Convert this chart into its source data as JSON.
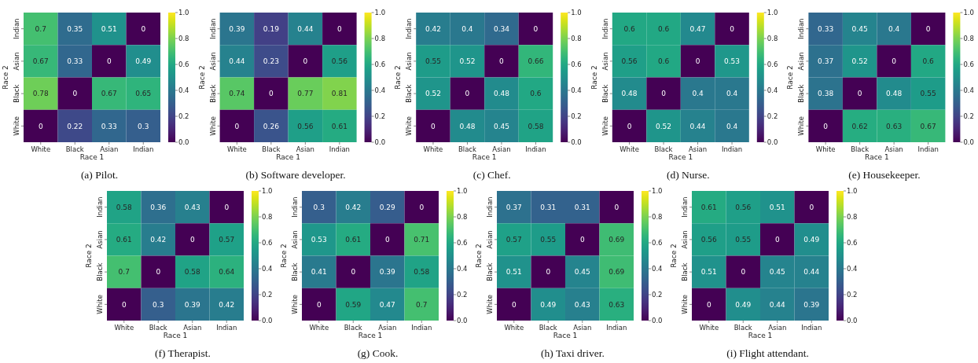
{
  "chart_data": [
    {
      "type": "heatmap",
      "data_labels": true,
      "title": "(a) Pilot.",
      "xlabel": "Race 1",
      "ylabel": "Race 2",
      "categories": [
        "White",
        "Black",
        "Asian",
        "Indian"
      ],
      "y_categories": [
        "Indian",
        "Asian",
        "Black",
        "White"
      ],
      "cells": [
        [
          0.7,
          0.35,
          0.51,
          0
        ],
        [
          0.67,
          0.33,
          0,
          0.49
        ],
        [
          0.78,
          0,
          0.67,
          0.65
        ],
        [
          0,
          0.22,
          0.33,
          0.3
        ]
      ],
      "clim": [
        0,
        1
      ],
      "cticks": [
        {
          "value": 0,
          "label": "0.0"
        },
        {
          "value": 0.2,
          "label": "0.2"
        },
        {
          "value": 0.4,
          "label": "0.4"
        },
        {
          "value": 0.6,
          "label": "0.6"
        },
        {
          "value": 0.8,
          "label": "0.8"
        },
        {
          "value": 1,
          "label": "1.0"
        }
      ]
    },
    {
      "type": "heatmap",
      "data_labels": true,
      "title": "(b) Software developer.",
      "xlabel": "Race 1",
      "ylabel": "Race 2",
      "categories": [
        "White",
        "Black",
        "Asian",
        "Indian"
      ],
      "y_categories": [
        "Indian",
        "Asian",
        "Black",
        "White"
      ],
      "cells": [
        [
          0.39,
          0.19,
          0.44,
          0
        ],
        [
          0.44,
          0.23,
          0,
          0.56
        ],
        [
          0.74,
          0,
          0.77,
          0.81
        ],
        [
          0,
          0.26,
          0.56,
          0.61
        ]
      ],
      "clim": [
        0,
        1
      ],
      "cticks": [
        {
          "value": 0,
          "label": "0.0"
        },
        {
          "value": 0.2,
          "label": "0.2"
        },
        {
          "value": 0.4,
          "label": "0.4"
        },
        {
          "value": 0.6,
          "label": "0.6"
        },
        {
          "value": 0.8,
          "label": "0.8"
        },
        {
          "value": 1,
          "label": "1.0"
        }
      ]
    },
    {
      "type": "heatmap",
      "data_labels": true,
      "title": "(c) Chef.",
      "xlabel": "Race 1",
      "ylabel": "Race 2",
      "categories": [
        "White",
        "Black",
        "Asian",
        "Indian"
      ],
      "y_categories": [
        "Indian",
        "Asian",
        "Black",
        "White"
      ],
      "cells": [
        [
          0.42,
          0.4,
          0.34,
          0
        ],
        [
          0.55,
          0.52,
          0,
          0.66
        ],
        [
          0.52,
          0,
          0.48,
          0.6
        ],
        [
          0,
          0.48,
          0.45,
          0.58
        ]
      ],
      "clim": [
        0,
        1
      ],
      "cticks": [
        {
          "value": 0,
          "label": "0.0"
        },
        {
          "value": 0.2,
          "label": "0.2"
        },
        {
          "value": 0.4,
          "label": "0.4"
        },
        {
          "value": 0.6,
          "label": "0.6"
        },
        {
          "value": 0.8,
          "label": "0.8"
        },
        {
          "value": 1,
          "label": "1.0"
        }
      ]
    },
    {
      "type": "heatmap",
      "data_labels": true,
      "title": "(d) Nurse.",
      "xlabel": "Race 1",
      "ylabel": "Race 2",
      "categories": [
        "White",
        "Black",
        "Asian",
        "Indian"
      ],
      "y_categories": [
        "Indian",
        "Asian",
        "Black",
        "White"
      ],
      "cells": [
        [
          0.6,
          0.6,
          0.47,
          0
        ],
        [
          0.56,
          0.6,
          0,
          0.53
        ],
        [
          0.48,
          0,
          0.4,
          0.4
        ],
        [
          0,
          0.52,
          0.44,
          0.4
        ]
      ],
      "clim": [
        0,
        1
      ],
      "cticks": [
        {
          "value": 0,
          "label": "0.0"
        },
        {
          "value": 0.2,
          "label": "0.2"
        },
        {
          "value": 0.4,
          "label": "0.4"
        },
        {
          "value": 0.6,
          "label": "0.6"
        },
        {
          "value": 0.8,
          "label": "0.8"
        },
        {
          "value": 1,
          "label": "1.0"
        }
      ]
    },
    {
      "type": "heatmap",
      "data_labels": true,
      "title": "(e) Housekeeper.",
      "xlabel": "Race 1",
      "ylabel": "Race 2",
      "categories": [
        "White",
        "Black",
        "Asian",
        "Indian"
      ],
      "y_categories": [
        "Indian",
        "Asian",
        "Black",
        "White"
      ],
      "cells": [
        [
          0.33,
          0.45,
          0.4,
          0
        ],
        [
          0.37,
          0.52,
          0,
          0.6
        ],
        [
          0.38,
          0,
          0.48,
          0.55
        ],
        [
          0,
          0.62,
          0.63,
          0.67
        ]
      ],
      "clim": [
        0,
        1
      ],
      "cticks": [
        {
          "value": 0,
          "label": "0.0"
        },
        {
          "value": 0.2,
          "label": "0.2"
        },
        {
          "value": 0.4,
          "label": "0.4"
        },
        {
          "value": 0.6,
          "label": "0.6"
        },
        {
          "value": 0.8,
          "label": "0.8"
        },
        {
          "value": 1,
          "label": "1.0"
        }
      ]
    },
    {
      "type": "heatmap",
      "data_labels": true,
      "title": "(f) Therapist.",
      "xlabel": "Race 1",
      "ylabel": "Race 2",
      "categories": [
        "White",
        "Black",
        "Asian",
        "Indian"
      ],
      "y_categories": [
        "Indian",
        "Asian",
        "Black",
        "White"
      ],
      "cells": [
        [
          0.58,
          0.36,
          0.43,
          0
        ],
        [
          0.61,
          0.42,
          0,
          0.57
        ],
        [
          0.7,
          0,
          0.58,
          0.64
        ],
        [
          0,
          0.3,
          0.39,
          0.42
        ]
      ],
      "clim": [
        0,
        1
      ],
      "cticks": [
        {
          "value": 0,
          "label": "0.0"
        },
        {
          "value": 0.2,
          "label": "0.2"
        },
        {
          "value": 0.4,
          "label": "0.4"
        },
        {
          "value": 0.6,
          "label": "0.6"
        },
        {
          "value": 0.8,
          "label": "0.8"
        },
        {
          "value": 1,
          "label": "1.0"
        }
      ]
    },
    {
      "type": "heatmap",
      "data_labels": true,
      "title": "(g) Cook.",
      "xlabel": "Race 1",
      "ylabel": "Race 2",
      "categories": [
        "White",
        "Black",
        "Asian",
        "Indian"
      ],
      "y_categories": [
        "Indian",
        "Asian",
        "Black",
        "White"
      ],
      "cells": [
        [
          0.3,
          0.42,
          0.29,
          0
        ],
        [
          0.53,
          0.61,
          0,
          0.71
        ],
        [
          0.41,
          0,
          0.39,
          0.58
        ],
        [
          0,
          0.59,
          0.47,
          0.7
        ]
      ],
      "clim": [
        0,
        1
      ],
      "cticks": [
        {
          "value": 0,
          "label": "0.0"
        },
        {
          "value": 0.2,
          "label": "0.2"
        },
        {
          "value": 0.4,
          "label": "0.4"
        },
        {
          "value": 0.6,
          "label": "0.6"
        },
        {
          "value": 0.8,
          "label": "0.8"
        },
        {
          "value": 1,
          "label": "1.0"
        }
      ]
    },
    {
      "type": "heatmap",
      "data_labels": true,
      "title": "(h) Taxi driver.",
      "xlabel": "Race 1",
      "ylabel": "Race 2",
      "categories": [
        "White",
        "Black",
        "Asian",
        "Indian"
      ],
      "y_categories": [
        "Indian",
        "Asian",
        "Black",
        "White"
      ],
      "cells": [
        [
          0.37,
          0.31,
          0.31,
          0
        ],
        [
          0.57,
          0.55,
          0,
          0.69
        ],
        [
          0.51,
          0,
          0.45,
          0.69
        ],
        [
          0,
          0.49,
          0.43,
          0.63
        ]
      ],
      "clim": [
        0,
        1
      ],
      "cticks": [
        {
          "value": 0,
          "label": "0.0"
        },
        {
          "value": 0.2,
          "label": "0.2"
        },
        {
          "value": 0.4,
          "label": "0.4"
        },
        {
          "value": 0.6,
          "label": "0.6"
        },
        {
          "value": 0.8,
          "label": "0.8"
        },
        {
          "value": 1,
          "label": "1.0"
        }
      ]
    },
    {
      "type": "heatmap",
      "data_labels": true,
      "title": "(i) Flight attendant.",
      "xlabel": "Race 1",
      "ylabel": "Race 2",
      "categories": [
        "White",
        "Black",
        "Asian",
        "Indian"
      ],
      "y_categories": [
        "Indian",
        "Asian",
        "Black",
        "White"
      ],
      "cells": [
        [
          0.61,
          0.56,
          0.51,
          0
        ],
        [
          0.56,
          0.55,
          0,
          0.49
        ],
        [
          0.51,
          0,
          0.45,
          0.44
        ],
        [
          0,
          0.49,
          0.44,
          0.39
        ]
      ],
      "clim": [
        0,
        1
      ],
      "cticks": [
        {
          "value": 0,
          "label": "0.0"
        },
        {
          "value": 0.2,
          "label": "0.2"
        },
        {
          "value": 0.4,
          "label": "0.4"
        },
        {
          "value": 0.6,
          "label": "0.6"
        },
        {
          "value": 0.8,
          "label": "0.8"
        },
        {
          "value": 1,
          "label": "1.0"
        }
      ]
    }
  ]
}
